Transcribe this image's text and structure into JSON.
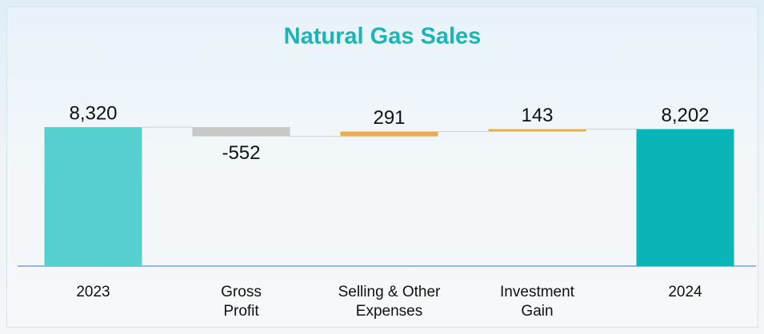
{
  "chart_data": {
    "type": "waterfall",
    "title": "Natural Gas Sales",
    "categories": [
      "2023",
      "Gross\nProfit",
      "Selling & Other\nExpenses",
      "Investment\nGain",
      "2024"
    ],
    "values": [
      8320,
      -552,
      291,
      143,
      8202
    ],
    "value_labels": [
      "8,320",
      "-552",
      "291",
      "143",
      "8,202"
    ],
    "totals": [
      true,
      false,
      false,
      false,
      true
    ],
    "colors": [
      "#56cfcf",
      "#c8c8c8",
      "#e8ad4e",
      "#e8ad4e",
      "#0ab5b8"
    ],
    "ylim": [
      0,
      10000
    ]
  }
}
